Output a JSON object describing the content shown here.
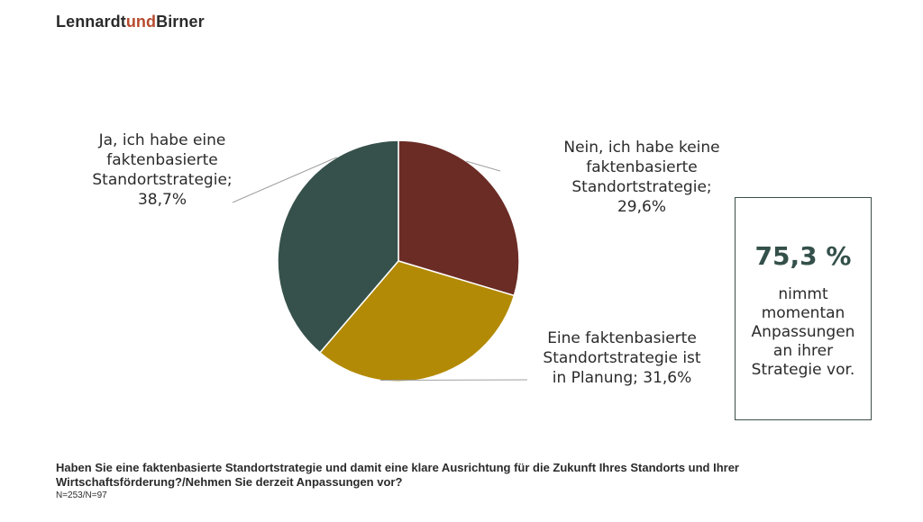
{
  "brand": {
    "part1": "Lennardt",
    "part2": "und",
    "part3": "Birner"
  },
  "chart_data": {
    "type": "pie",
    "slices": [
      {
        "label": "Nein, ich habe keine\nfaktenbasierte\nStandortstrategie;\n29,6%",
        "value": 29.6,
        "color": "#6b2c25"
      },
      {
        "label": "Eine faktenbasierte\nStandortstrategie ist\nin Planung; 31,6%",
        "value": 31.6,
        "color": "#b38a05"
      },
      {
        "label": "Ja, ich habe eine\nfaktenbasierte\nStandortstrategie;\n38,7%",
        "value": 38.7,
        "color": "#36514b"
      }
    ]
  },
  "kpi": {
    "value": "75,3 %",
    "text": "nimmt\nmomentan\nAnpassungen\nan ihrer\nStrategie vor."
  },
  "footer": {
    "question": "Haben Sie eine faktenbasierte Standortstrategie und damit eine klare Ausrichtung für die Zukunft Ihres Standorts und Ihrer Wirtschaftsförderung?/Nehmen Sie derzeit Anpassungen vor?",
    "sample": "N=253/N=97"
  }
}
